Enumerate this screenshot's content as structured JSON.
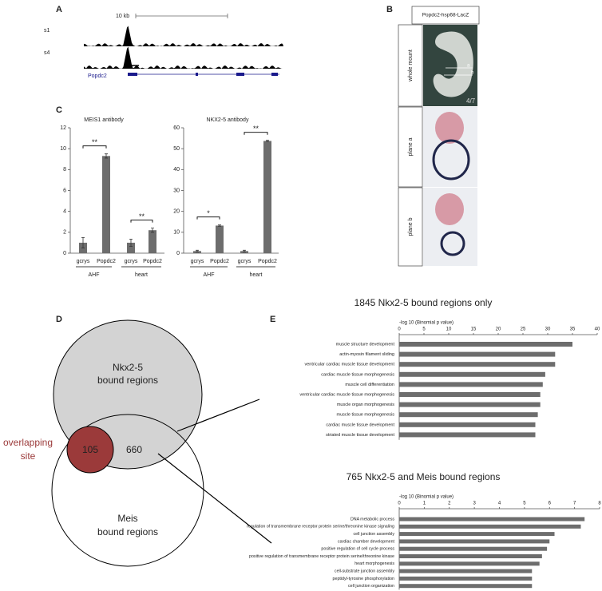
{
  "panel_labels": [
    "A",
    "B",
    "C",
    "D",
    "E"
  ],
  "track": {
    "scale": "10 kb",
    "tracks": [
      "s1",
      "s4"
    ],
    "gene": "Popdc2"
  },
  "embryo": {
    "title": "Popdc2-hsp68-LacZ",
    "rows": [
      "whole mount",
      "plane a",
      "plane b"
    ],
    "fraction": "4/7",
    "markers": [
      "a",
      "b"
    ]
  },
  "venn": {
    "set_a": [
      "Nkx2-5",
      "bound regions"
    ],
    "set_b": [
      "Meis",
      "bound regions"
    ],
    "overlap": 105,
    "only_a": 660,
    "overlap_label": [
      "overlapping",
      "site"
    ]
  },
  "chart_data": [
    {
      "type": "bar",
      "title": "MEIS1 antibody",
      "categories": [
        "gcrys",
        "Popdc2",
        "gcrys",
        "Popdc2"
      ],
      "groups": [
        "AHF",
        "heart"
      ],
      "values": [
        1.0,
        9.3,
        1.0,
        2.2
      ],
      "errors": [
        0.5,
        0.2,
        0.35,
        0.2
      ],
      "significance": [
        "**",
        "**"
      ],
      "color": "#6d6d6d",
      "ylim": [
        0,
        12
      ],
      "yticks": [
        0,
        2,
        4,
        6,
        8,
        10,
        12
      ]
    },
    {
      "type": "bar",
      "title": "NKX2-5 antibody",
      "categories": [
        "gcrys",
        "Popdc2",
        "gcrys",
        "Popdc2"
      ],
      "groups": [
        "AHF",
        "heart"
      ],
      "values": [
        1.0,
        13.2,
        1.0,
        53.7
      ],
      "errors": [
        0.4,
        0.3,
        0.4,
        0.3
      ],
      "significance": [
        "*",
        "**"
      ],
      "color": "#6d6d6d",
      "ylim": [
        0,
        60
      ],
      "yticks": [
        0,
        10,
        20,
        30,
        40,
        50,
        60
      ]
    },
    {
      "type": "barh",
      "title": "1845 Nkx2-5 bound regions only",
      "xlabel": "-log 10 (Binomial p value)",
      "categories": [
        "muscle structure development",
        "actin-myosin filament sliding",
        "ventricular cardiac muscle tissue development",
        "cardiac muscle tissue morphogenesis",
        "muscle cell differentiation",
        "ventricular cardiac muscle tissue morphogenesis",
        "muscle organ morphogenesis",
        "muscle tissue morphogenesis",
        "cardiac muscle tissue development",
        "striated muscle tissue development"
      ],
      "values": [
        35,
        31.5,
        31.5,
        29.5,
        29,
        28.5,
        28.5,
        28,
        27.5,
        27.5
      ],
      "color": "#6d6d6d",
      "xlim": [
        0,
        40
      ],
      "xticks": [
        0,
        5,
        10,
        15,
        20,
        25,
        30,
        35,
        40
      ]
    },
    {
      "type": "barh",
      "title": "765 Nkx2-5 and Meis bound regions",
      "xlabel": "-log 10 (Binomial p value)",
      "categories": [
        "DNA metabolic process",
        "regulation of transmembrane receptor protein serine/threonine kinase signaling",
        "cell junction assembly",
        "cardiac chamber development",
        "positive regulation of cell cycle process",
        "positive regulation of transmembrane receptor protein serine/threonine kinase",
        "heart morphogenesis",
        "cell-substrate junction assembly",
        "peptidyl-tyrosine phosphorylation",
        "cell junction organization"
      ],
      "values": [
        7.4,
        7.25,
        6.2,
        6.0,
        5.9,
        5.7,
        5.6,
        5.3,
        5.3,
        5.3
      ],
      "color": "#6d6d6d",
      "xlim": [
        0,
        8
      ],
      "xticks": [
        0,
        1,
        2,
        3,
        4,
        5,
        6,
        7,
        8
      ]
    }
  ]
}
